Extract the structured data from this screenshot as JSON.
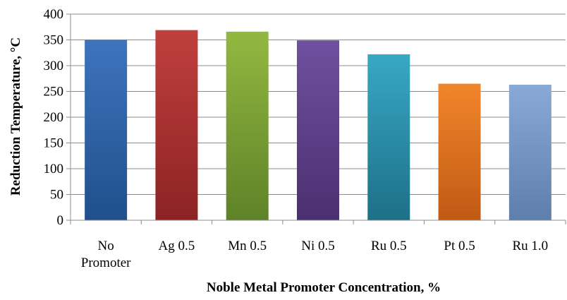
{
  "chart_data": {
    "type": "bar",
    "title": "",
    "xlabel": "Noble Metal Promoter Concentration, %",
    "ylabel": "Reduction Temperature, °C",
    "ylim": [
      0,
      400
    ],
    "yticks": [
      0,
      50,
      100,
      150,
      200,
      250,
      300,
      350,
      400
    ],
    "grid": true,
    "legend": "none",
    "categories": [
      [
        "No",
        "Promoter"
      ],
      [
        "Ag 0.5"
      ],
      [
        "Mn 0.5"
      ],
      [
        "Ni 0.5"
      ],
      [
        "Ru 0.5"
      ],
      [
        "Pt 0.5"
      ],
      [
        "Ru 1.0"
      ]
    ],
    "values": [
      350,
      369,
      366,
      349,
      322,
      265,
      263
    ],
    "colors": [
      [
        "#3e74bd",
        "#20508c"
      ],
      [
        "#c0403e",
        "#8c2323"
      ],
      [
        "#93b840",
        "#5e8228"
      ],
      [
        "#7050a0",
        "#4a3070"
      ],
      [
        "#39a8c4",
        "#1d7088"
      ],
      [
        "#f2862c",
        "#c05a14"
      ],
      [
        "#8aa9d6",
        "#5f7fab"
      ]
    ]
  }
}
